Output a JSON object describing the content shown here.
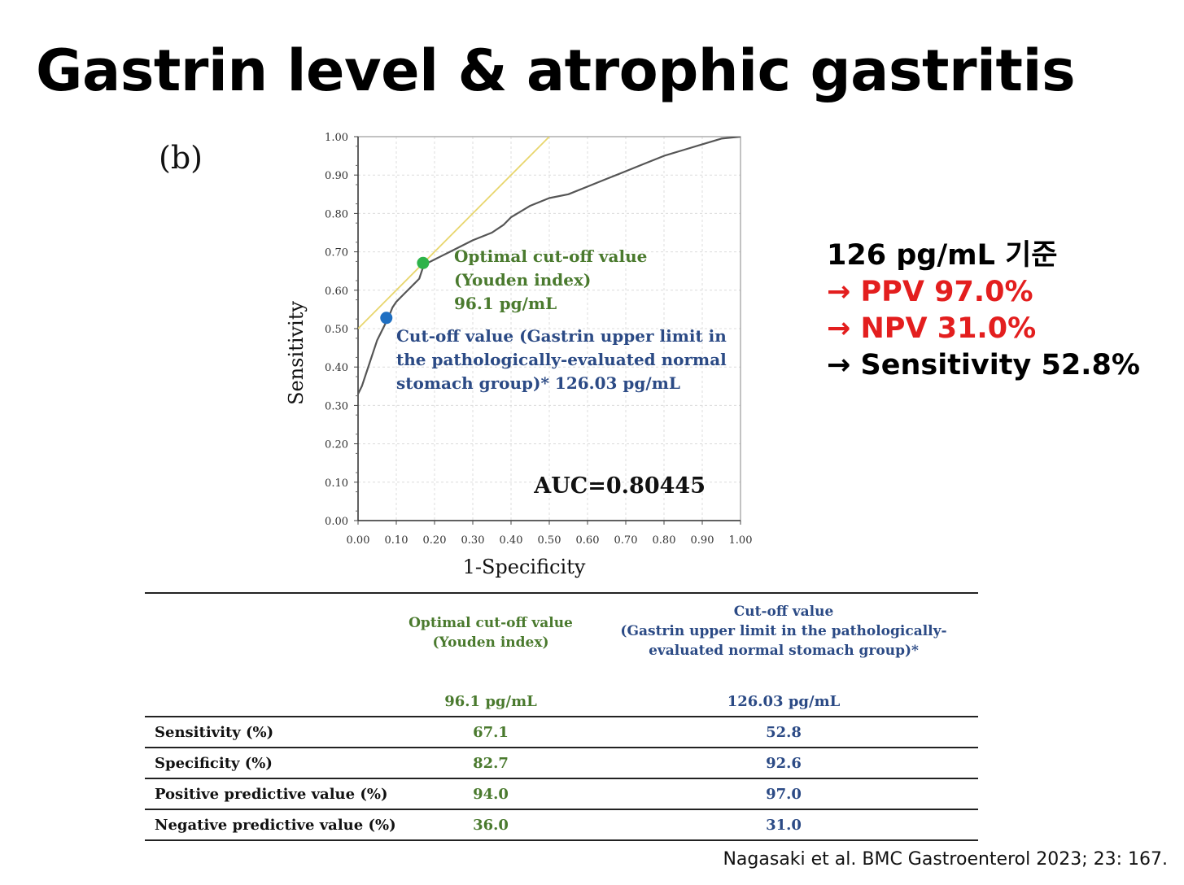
{
  "title": "Gastrin level & atrophic gastritis",
  "panel_label": "(b)",
  "chart_data": {
    "type": "line",
    "xlabel": "1-Specificity",
    "ylabel": "Sensitivity",
    "xlim": [
      0,
      1
    ],
    "ylim": [
      0,
      1
    ],
    "x_ticks": [
      "0.00",
      "0.10",
      "0.20",
      "0.30",
      "0.40",
      "0.50",
      "0.60",
      "0.70",
      "0.80",
      "0.90",
      "1.00"
    ],
    "y_ticks": [
      "0.00",
      "0.10",
      "0.20",
      "0.30",
      "0.40",
      "0.50",
      "0.60",
      "0.70",
      "0.80",
      "0.90",
      "1.00"
    ],
    "grid": true,
    "series": [
      {
        "color": "#555555",
        "x": [
          0.0,
          0.01,
          0.02,
          0.03,
          0.04,
          0.05,
          0.06,
          0.07,
          0.08,
          0.09,
          0.1,
          0.12,
          0.14,
          0.16,
          0.17,
          0.18,
          0.2,
          0.22,
          0.24,
          0.26,
          0.3,
          0.35,
          0.38,
          0.4,
          0.45,
          0.5,
          0.55,
          0.6,
          0.65,
          0.7,
          0.75,
          0.8,
          0.85,
          0.9,
          0.95,
          1.0
        ],
        "y": [
          0.33,
          0.35,
          0.38,
          0.41,
          0.44,
          0.47,
          0.49,
          0.51,
          0.53,
          0.555,
          0.57,
          0.59,
          0.61,
          0.63,
          0.66,
          0.67,
          0.68,
          0.69,
          0.7,
          0.71,
          0.73,
          0.75,
          0.77,
          0.79,
          0.82,
          0.84,
          0.85,
          0.87,
          0.89,
          0.91,
          0.93,
          0.95,
          0.965,
          0.98,
          0.995,
          1.0
        ]
      },
      {
        "color": "#e8d66e",
        "x": [
          0.0,
          0.5
        ],
        "y": [
          0.5,
          1.0
        ]
      }
    ],
    "points": [
      {
        "x": 0.17,
        "y": 0.671,
        "color": "#2db34a"
      },
      {
        "x": 0.074,
        "y": 0.528,
        "color": "#1f6fc2"
      }
    ],
    "annotations": {
      "optimal_lines": [
        "Optimal cut-off value",
        "(Youden index)",
        "96.1 pg/mL"
      ],
      "cutoff_lines": [
        "Cut-off value (Gastrin upper limit in",
        "the pathologically-evaluated normal",
        "stomach group)* 126.03 pg/mL"
      ],
      "auc": "AUC=0.80445"
    }
  },
  "note": {
    "line1": "126 pg/mL 기준",
    "line2": "→ PPV 97.0%",
    "line3": "→ NPV 31.0%",
    "line4": "→ Sensitivity 52.8%"
  },
  "table": {
    "col_optimal_lines": [
      "Optimal cut-off value",
      "(Youden index)"
    ],
    "col_cutoff_lines": [
      "Cut-off value",
      "(Gastrin upper limit in the pathologically-",
      "evaluated normal stomach group)*"
    ],
    "unit_optimal": "96.1 pg/mL",
    "unit_cutoff": "126.03 pg/mL",
    "rows": [
      {
        "label": "Sensitivity  (%)",
        "optimal": "67.1",
        "cutoff": "52.8"
      },
      {
        "label": "Specificity (%)",
        "optimal": "82.7",
        "cutoff": "92.6"
      },
      {
        "label": "Positive predictive value (%)",
        "optimal": "94.0",
        "cutoff": "97.0"
      },
      {
        "label": "Negative predictive value (%)",
        "optimal": "36.0",
        "cutoff": "31.0"
      }
    ]
  },
  "citation": "Nagasaki et al. BMC Gastroenterol 2023; 23: 167."
}
